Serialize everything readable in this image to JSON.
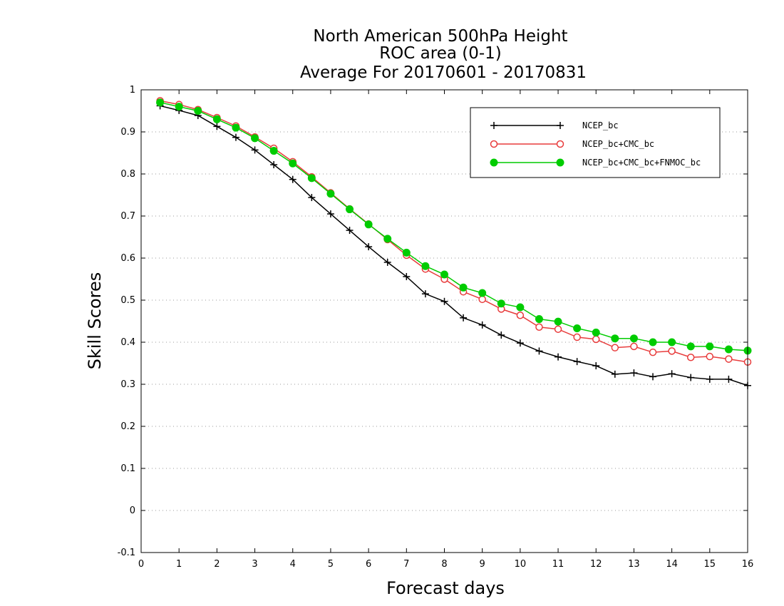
{
  "chart_data": {
    "type": "line",
    "title_lines": [
      "North American 500hPa Height",
      "ROC area (0-1)",
      "Average For 20170601 - 20170831"
    ],
    "xlabel": "Forecast days",
    "ylabel": "Skill Scores",
    "xlim": [
      0,
      16
    ],
    "ylim": [
      -0.1,
      1
    ],
    "x_ticks": [
      0,
      1,
      2,
      3,
      4,
      5,
      6,
      7,
      8,
      9,
      10,
      11,
      12,
      13,
      14,
      15,
      16
    ],
    "y_ticks": [
      -0.1,
      0,
      0.1,
      0.2,
      0.3,
      0.4,
      0.5,
      0.6,
      0.7,
      0.8,
      0.9,
      1
    ],
    "y_tick_labels": [
      "-0.1",
      "0",
      "0.1",
      "0.2",
      "0.3",
      "0.4",
      "0.5",
      "0.6",
      "0.7",
      "0.8",
      "0.9",
      "1"
    ],
    "grid": "horizontal dotted",
    "legend_position": "top-right",
    "x": [
      0.5,
      1,
      1.5,
      2,
      2.5,
      3,
      3.5,
      4,
      4.5,
      5,
      5.5,
      6,
      6.5,
      7,
      7.5,
      8,
      8.5,
      9,
      9.5,
      10,
      10.5,
      11,
      11.5,
      12,
      12.5,
      13,
      13.5,
      14,
      14.5,
      15,
      15.5,
      16
    ],
    "series": [
      {
        "name": "NCEP_bc",
        "color": "#000000",
        "marker": "plus",
        "values": [
          0.962,
          0.951,
          0.939,
          0.913,
          0.887,
          0.857,
          0.822,
          0.787,
          0.744,
          0.705,
          0.666,
          0.627,
          0.59,
          0.556,
          0.515,
          0.497,
          0.458,
          0.441,
          0.417,
          0.398,
          0.379,
          0.365,
          0.354,
          0.344,
          0.324,
          0.327,
          0.318,
          0.325,
          0.316,
          0.312,
          0.312,
          0.297
        ]
      },
      {
        "name": "NCEP_bc+CMC_bc",
        "color": "#e83c3c",
        "marker": "open-circle",
        "values": [
          0.974,
          0.965,
          0.953,
          0.934,
          0.914,
          0.888,
          0.861,
          0.829,
          0.793,
          0.755,
          0.717,
          0.681,
          0.644,
          0.607,
          0.574,
          0.55,
          0.52,
          0.502,
          0.479,
          0.464,
          0.436,
          0.431,
          0.412,
          0.407,
          0.387,
          0.39,
          0.376,
          0.379,
          0.364,
          0.366,
          0.36,
          0.353
        ]
      },
      {
        "name": "NCEP_bc+CMC_bc+FNMOC_bc",
        "color": "#00cc00",
        "marker": "filled-circle",
        "values": [
          0.97,
          0.96,
          0.95,
          0.93,
          0.91,
          0.885,
          0.855,
          0.825,
          0.79,
          0.753,
          0.716,
          0.68,
          0.646,
          0.613,
          0.581,
          0.561,
          0.53,
          0.517,
          0.492,
          0.483,
          0.455,
          0.449,
          0.433,
          0.423,
          0.409,
          0.409,
          0.4,
          0.4,
          0.39,
          0.39,
          0.383,
          0.38
        ]
      }
    ]
  }
}
